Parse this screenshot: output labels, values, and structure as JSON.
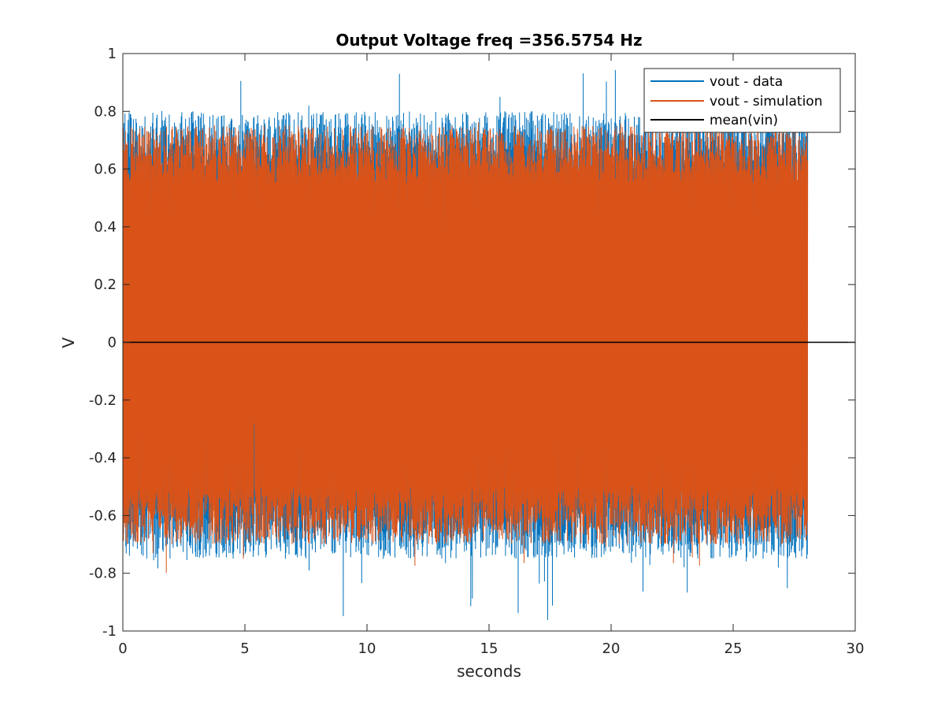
{
  "chart_data": {
    "type": "line",
    "title": "Output Voltage freq =356.5754 Hz",
    "xlabel": "seconds",
    "ylabel": "V",
    "xlim": [
      0,
      30
    ],
    "ylim": [
      -1,
      1
    ],
    "xticks": [
      0,
      5,
      10,
      15,
      20,
      25,
      30
    ],
    "yticks": [
      -1,
      -0.8,
      -0.6,
      -0.4,
      -0.2,
      0,
      0.2,
      0.4,
      0.6,
      0.8,
      1
    ],
    "x_tick_labels": [
      "0",
      "5",
      "10",
      "15",
      "20",
      "25",
      "30"
    ],
    "y_tick_labels": [
      "-1",
      "-0.8",
      "-0.6",
      "-0.4",
      "-0.2",
      "0",
      "0.2",
      "0.4",
      "0.6",
      "0.8",
      "1"
    ],
    "grid": false,
    "legend_position": "top-right",
    "series": [
      {
        "name": "vout - data",
        "color": "#0072BD",
        "x_range": [
          0,
          28.05
        ],
        "typical_upper_envelope": 0.7,
        "typical_lower_envelope": -0.65,
        "peak_max": 0.98,
        "peak_min": -0.97
      },
      {
        "name": "vout - simulation",
        "color": "#D95319",
        "x_range": [
          0,
          28.05
        ],
        "typical_upper_envelope": 0.65,
        "typical_lower_envelope": -0.6,
        "peak_max": 0.77,
        "peak_min": -0.8
      },
      {
        "name": "mean(vin)",
        "color": "#000000",
        "x": [
          0,
          30
        ],
        "y": [
          0,
          0
        ]
      }
    ]
  }
}
